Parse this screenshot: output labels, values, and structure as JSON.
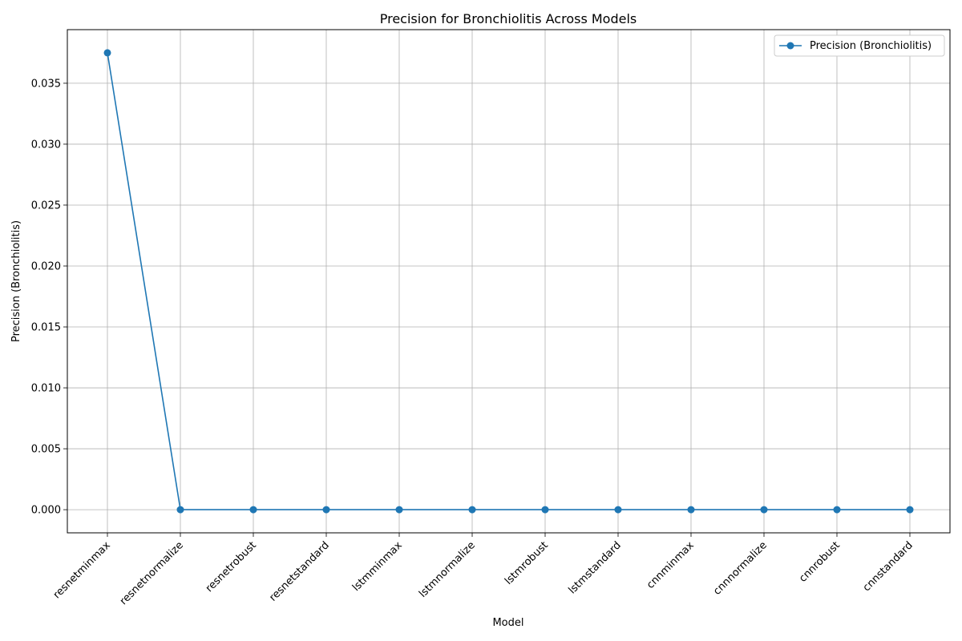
{
  "chart_data": {
    "type": "line",
    "title": "Precision for Bronchiolitis Across Models",
    "xlabel": "Model",
    "ylabel": "Precision (Bronchiolitis)",
    "categories": [
      "resnetminmax",
      "resnetnormalize",
      "resnetrobust",
      "resnetstandard",
      "lstmminmax",
      "lstmnormalize",
      "lstmrobust",
      "lstmstandard",
      "cnnminmax",
      "cnnnormalize",
      "cnnrobust",
      "cnnstandard"
    ],
    "series": [
      {
        "name": "Precision (Bronchiolitis)",
        "values": [
          0.0375,
          0,
          0,
          0,
          0,
          0,
          0,
          0,
          0,
          0,
          0,
          0
        ]
      }
    ],
    "ylim": [
      -0.0019,
      0.0394
    ],
    "yticks": [
      "0.000",
      "0.005",
      "0.010",
      "0.015",
      "0.020",
      "0.025",
      "0.030",
      "0.035"
    ],
    "ytick_values": [
      0,
      0.005,
      0.01,
      0.015,
      0.02,
      0.025,
      0.03,
      0.035
    ],
    "grid": true,
    "legend_position": "top-right",
    "color": "#1f77b4"
  }
}
